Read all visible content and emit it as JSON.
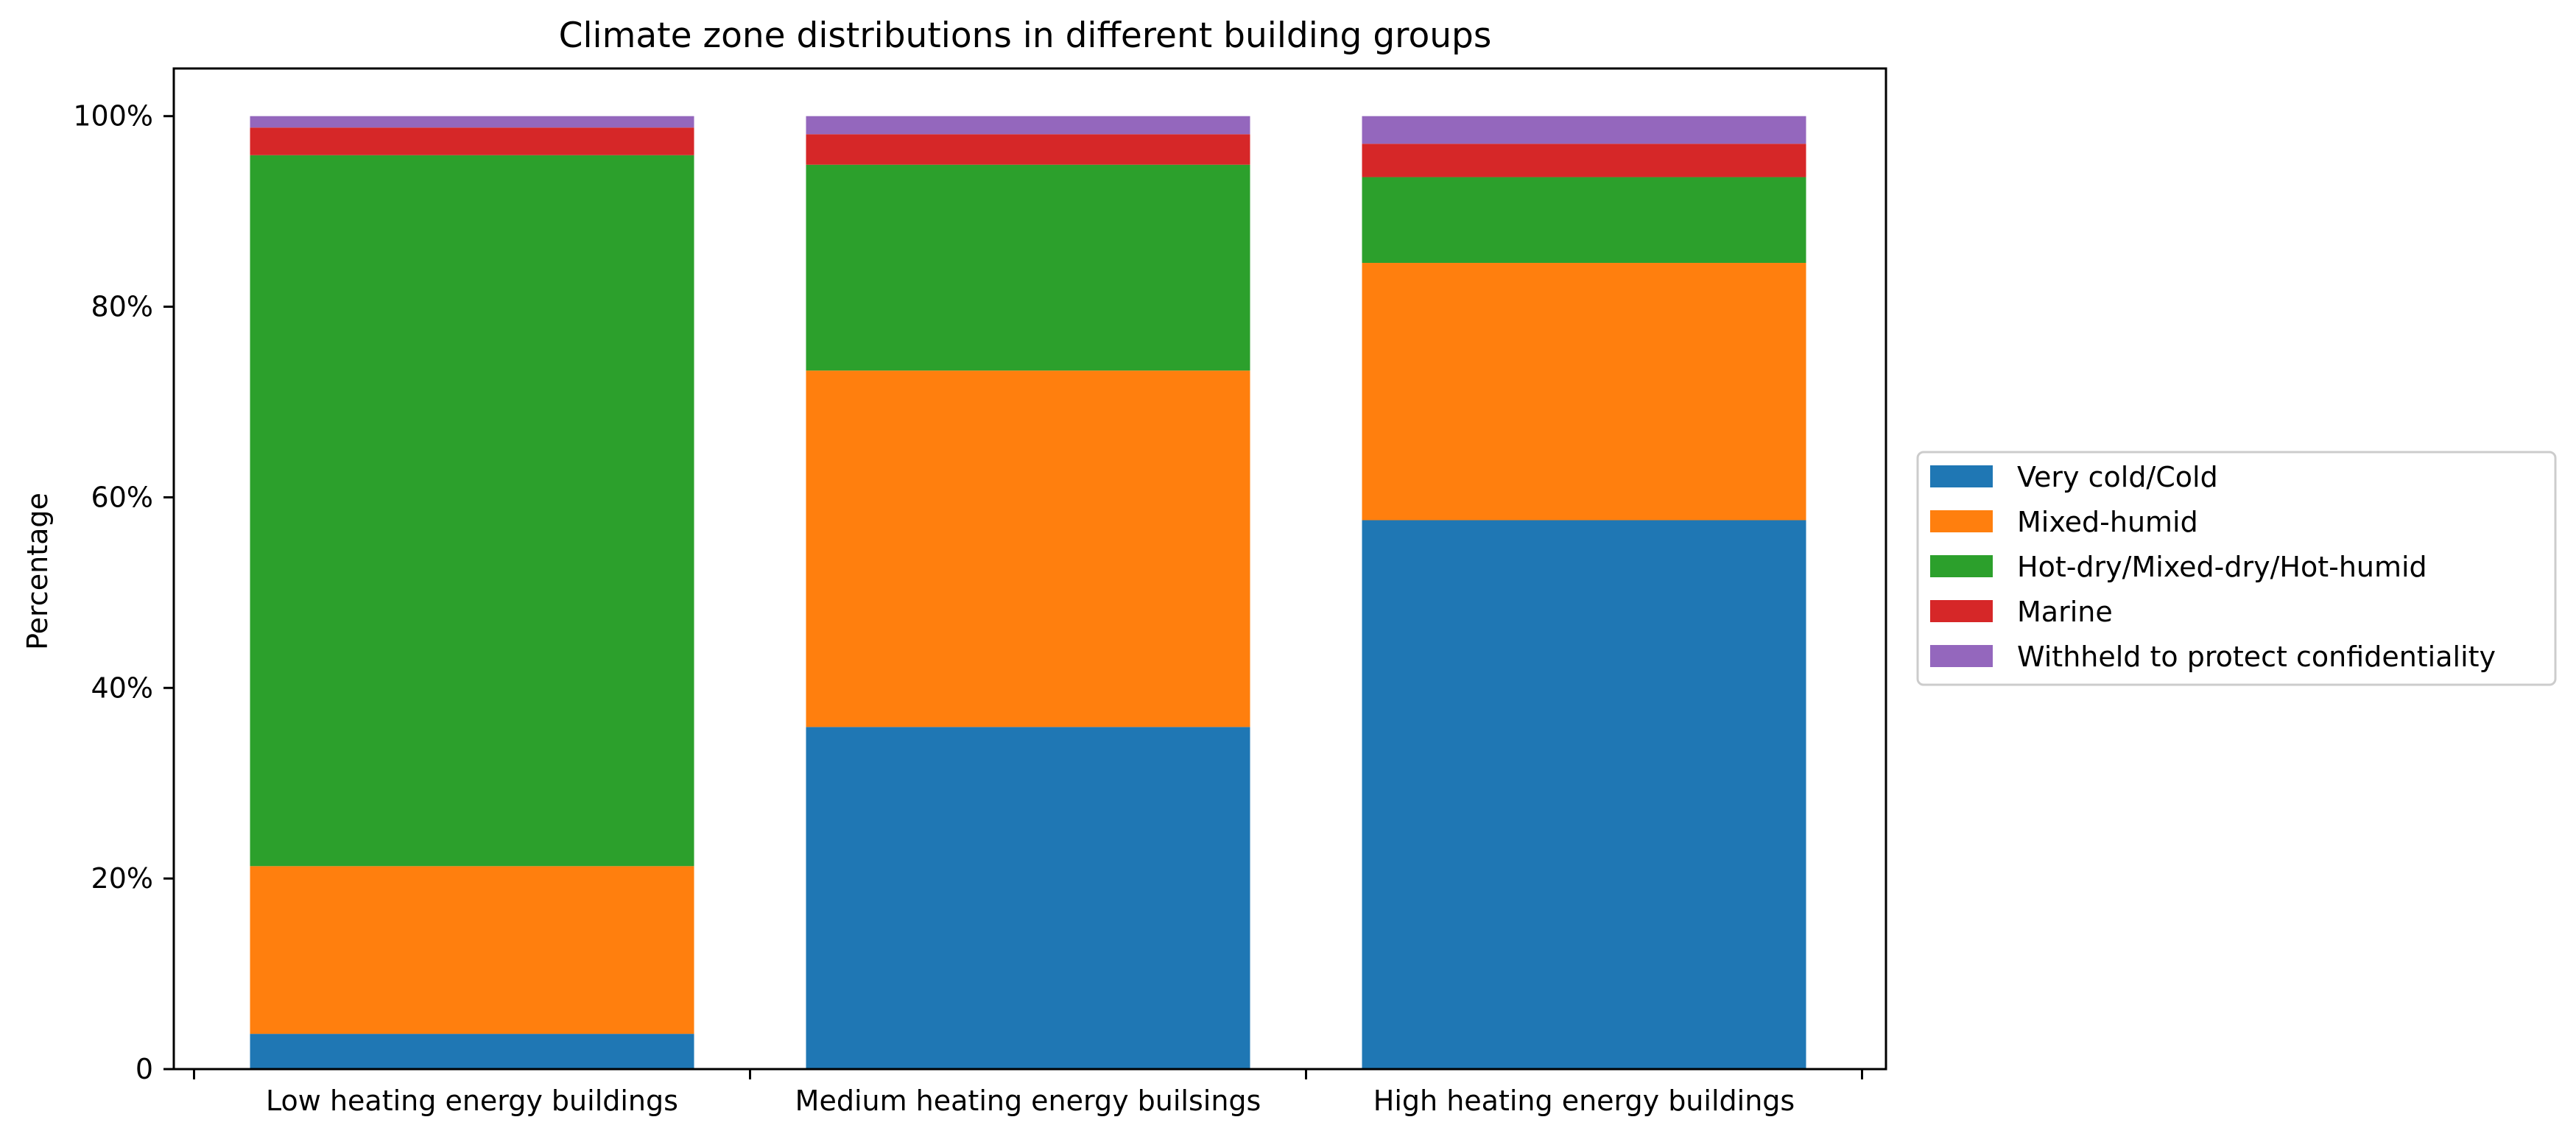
{
  "chart_data": {
    "type": "bar",
    "stacked": true,
    "title": "Climate zone distributions in different building groups",
    "xlabel": "",
    "ylabel": "Percentage",
    "categories": [
      "Low heating energy buildings",
      "Medium heating energy builsings",
      "High heating energy buildings"
    ],
    "series": [
      {
        "name": "Very cold/Cold",
        "color": "#1f77b4",
        "values": [
          3.7,
          35.9,
          57.6
        ]
      },
      {
        "name": "Mixed-humid",
        "color": "#ff7f0e",
        "values": [
          17.6,
          37.4,
          27.0
        ]
      },
      {
        "name": "Hot-dry/Mixed-dry/Hot-humid",
        "color": "#2ca02c",
        "values": [
          74.6,
          21.6,
          9.0
        ]
      },
      {
        "name": "Marine",
        "color": "#d62728",
        "values": [
          2.9,
          3.2,
          3.5
        ]
      },
      {
        "name": "Withheld to protect confidentiality",
        "color": "#9467bd",
        "values": [
          1.2,
          1.9,
          2.9
        ]
      }
    ],
    "ylim": [
      0,
      105
    ],
    "yticks": [
      0,
      20,
      40,
      60,
      80,
      100
    ],
    "ytick_labels": [
      "0",
      "20%",
      "40%",
      "60%",
      "80%",
      "100%"
    ],
    "grid": false,
    "legend_position": "right, outside plot area"
  }
}
